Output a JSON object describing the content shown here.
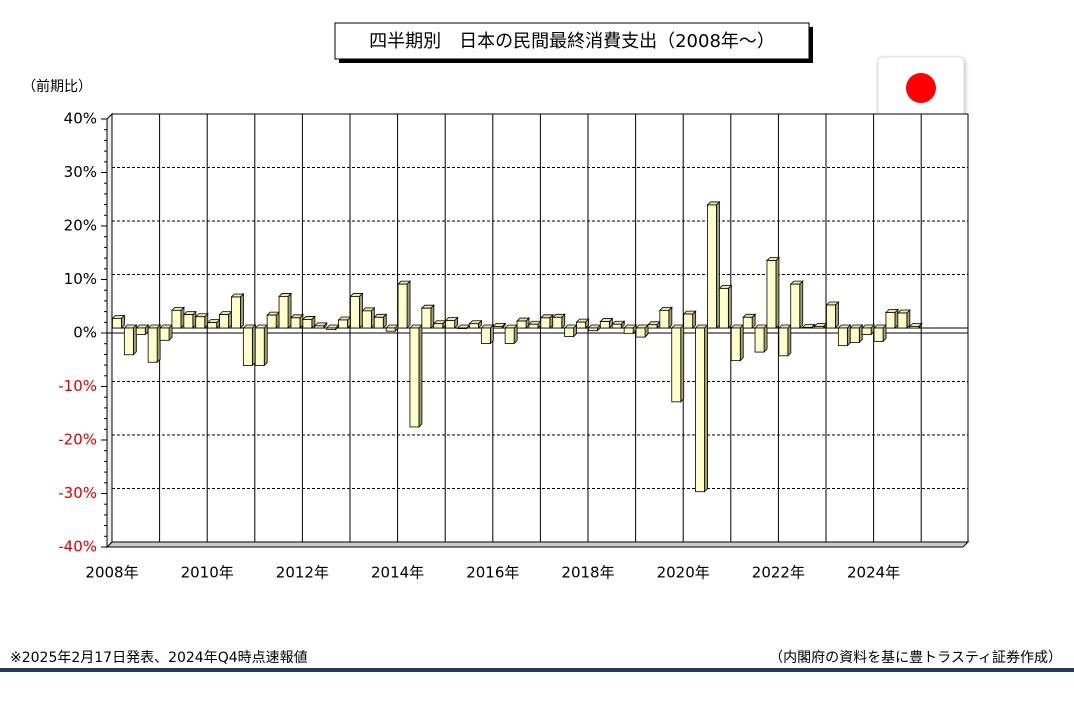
{
  "chart_data": {
    "type": "bar",
    "title": "四半期別　日本の民間最終消費支出（2008年～）",
    "y_label": "（前期比）",
    "note": "※2025年2月17日発表、2024年Q4時点速報値",
    "source": "（内閣府の資料を基に豊トラスティ証券作成）",
    "color": "#ffffcc",
    "negative_tick_color": "#e00000",
    "grid": true,
    "ylim": [
      -40,
      40
    ],
    "yticks": [
      {
        "value": -40,
        "label": "-40%"
      },
      {
        "value": -30,
        "label": "-30%"
      },
      {
        "value": -20,
        "label": "-20%"
      },
      {
        "value": -10,
        "label": "-10%"
      },
      {
        "value": 0,
        "label": "0%"
      },
      {
        "value": 10,
        "label": "10%"
      },
      {
        "value": 20,
        "label": "20%"
      },
      {
        "value": 30,
        "label": "30%"
      },
      {
        "value": 40,
        "label": "40%"
      }
    ],
    "categories": [
      "2008年",
      null,
      null,
      null,
      null,
      null,
      null,
      null,
      "2010年",
      null,
      null,
      null,
      null,
      null,
      null,
      null,
      "2012年",
      null,
      null,
      null,
      null,
      null,
      null,
      null,
      "2014年",
      null,
      null,
      null,
      null,
      null,
      null,
      null,
      "2016年",
      null,
      null,
      null,
      null,
      null,
      null,
      null,
      "2018年",
      null,
      null,
      null,
      null,
      null,
      null,
      null,
      "2020年",
      null,
      null,
      null,
      null,
      null,
      null,
      null,
      "2022年",
      null,
      null,
      null,
      null,
      null,
      null,
      null,
      "2024年",
      null,
      null,
      null
    ],
    "values": [
      1.8,
      -5.0,
      -1.2,
      -6.4,
      -2.3,
      3.3,
      2.5,
      2.1,
      1.0,
      2.5,
      5.8,
      -7.0,
      -7.0,
      2.4,
      5.9,
      1.9,
      1.6,
      0.4,
      -0.3,
      1.5,
      5.9,
      3.2,
      2.0,
      -0.6,
      8.2,
      -18.5,
      3.7,
      0.8,
      1.4,
      -0.1,
      0.8,
      -2.9,
      0.3,
      -2.9,
      1.3,
      0.7,
      1.9,
      2.0,
      -1.6,
      1.1,
      -0.5,
      1.2,
      0.7,
      -1.0,
      -1.7,
      0.6,
      3.3,
      -13.8,
      2.6,
      -30.6,
      23.0,
      7.4,
      -6.1,
      2.0,
      -4.5,
      12.6,
      -5.2,
      8.2,
      0.1,
      0.3,
      4.3,
      -3.3,
      -2.7,
      -1.2,
      -2.5,
      2.9,
      2.8,
      0.3
    ]
  }
}
